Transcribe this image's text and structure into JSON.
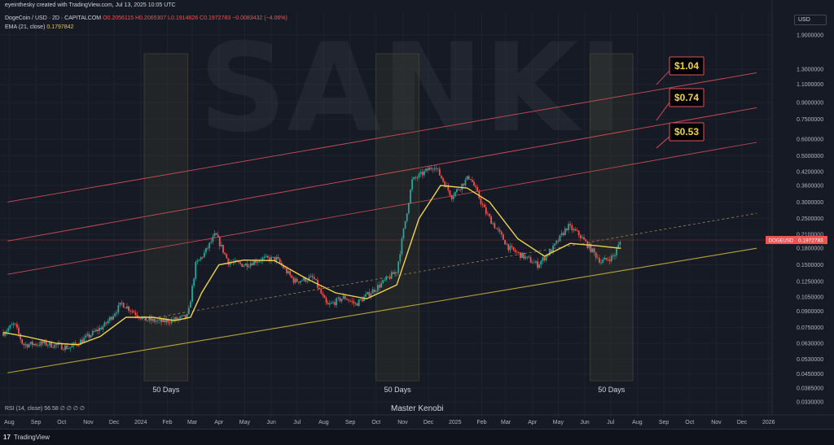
{
  "header": {
    "credit": "eyeinthesky created with TradingView.com, Jul 13, 2025 10:05 UTC",
    "symbol": "DogeCoin / USD · 2D · CAPITALCOM",
    "ohlc": "O0.2056115 H0.2065307 L0.1914826 C0.1972783 −0.0083432 (−4.06%)",
    "ema_label": "EMA (21, close)",
    "ema_value": "0.1797842"
  },
  "currency_button": "USD",
  "watermark": "SANKI",
  "watermark_subtitle": "Master Kenobi",
  "rsi": {
    "label": "RSI (14, close)",
    "value": "56.58",
    "placeholders": "∅ ∅ ∅ ∅"
  },
  "footer": {
    "logo": "17",
    "brand": "TradingView"
  },
  "colors": {
    "background": "#161a25",
    "up": "#26a69a",
    "down": "#ef5350",
    "ema": "#f0d34a",
    "support": "#c9b23a",
    "resistance": "#e0535b",
    "target_box": "#f4d03f"
  },
  "chart_data": {
    "type": "candlestick",
    "price_scale": "log",
    "ylim": [
      0.033,
      1.95
    ],
    "x_range": [
      "2023-07-25",
      "2026-01-05"
    ],
    "y_ticks": [
      "1.9000000",
      "1.3000000",
      "1.1000000",
      "0.9000000",
      "0.7500000",
      "0.6000000",
      "0.5000000",
      "0.4200000",
      "0.3600000",
      "0.3000000",
      "0.2500000",
      "0.2100000",
      "0.1800000",
      "0.1500000",
      "0.1250000",
      "0.1050000",
      "0.0900000",
      "0.0750000",
      "0.0630000",
      "0.0530000",
      "0.0450000",
      "0.0385000",
      "0.0330000"
    ],
    "x_ticks": [
      {
        "label": "Aug",
        "date": "2023-08-01"
      },
      {
        "label": "Sep",
        "date": "2023-09-01"
      },
      {
        "label": "Oct",
        "date": "2023-10-01"
      },
      {
        "label": "Nov",
        "date": "2023-11-01"
      },
      {
        "label": "Dec",
        "date": "2023-12-01"
      },
      {
        "label": "2024",
        "date": "2024-01-01"
      },
      {
        "label": "Feb",
        "date": "2024-02-01"
      },
      {
        "label": "Mar",
        "date": "2024-03-01"
      },
      {
        "label": "Apr",
        "date": "2024-04-01"
      },
      {
        "label": "May",
        "date": "2024-05-01"
      },
      {
        "label": "Jun",
        "date": "2024-06-01"
      },
      {
        "label": "Jul",
        "date": "2024-07-01"
      },
      {
        "label": "Aug",
        "date": "2024-08-01"
      },
      {
        "label": "Sep",
        "date": "2024-09-01"
      },
      {
        "label": "Oct",
        "date": "2024-10-01"
      },
      {
        "label": "Nov",
        "date": "2024-11-01"
      },
      {
        "label": "Dec",
        "date": "2024-12-01"
      },
      {
        "label": "2025",
        "date": "2025-01-01"
      },
      {
        "label": "Feb",
        "date": "2025-02-01"
      },
      {
        "label": "Mar",
        "date": "2025-03-01"
      },
      {
        "label": "Apr",
        "date": "2025-04-01"
      },
      {
        "label": "May",
        "date": "2025-05-01"
      },
      {
        "label": "Jun",
        "date": "2025-06-01"
      },
      {
        "label": "Jul",
        "date": "2025-07-01"
      },
      {
        "label": "Aug",
        "date": "2025-08-01"
      },
      {
        "label": "Sep",
        "date": "2025-09-01"
      },
      {
        "label": "Oct",
        "date": "2025-10-01"
      },
      {
        "label": "Nov",
        "date": "2025-11-01"
      },
      {
        "label": "Dec",
        "date": "2025-12-01"
      },
      {
        "label": "2026",
        "date": "2026-01-01"
      }
    ],
    "price_path": [
      [
        "2023-07-25",
        0.071
      ],
      [
        "2023-08-07",
        0.078
      ],
      [
        "2023-08-17",
        0.062
      ],
      [
        "2023-09-10",
        0.063
      ],
      [
        "2023-10-10",
        0.06
      ],
      [
        "2023-11-01",
        0.068
      ],
      [
        "2023-11-20",
        0.077
      ],
      [
        "2023-12-10",
        0.098
      ],
      [
        "2024-01-05",
        0.082
      ],
      [
        "2024-01-25",
        0.08
      ],
      [
        "2024-02-12",
        0.082
      ],
      [
        "2024-02-25",
        0.085
      ],
      [
        "2024-03-05",
        0.15
      ],
      [
        "2024-03-15",
        0.17
      ],
      [
        "2024-03-28",
        0.21
      ],
      [
        "2024-04-12",
        0.155
      ],
      [
        "2024-05-01",
        0.15
      ],
      [
        "2024-05-20",
        0.16
      ],
      [
        "2024-06-07",
        0.16
      ],
      [
        "2024-06-28",
        0.125
      ],
      [
        "2024-07-20",
        0.13
      ],
      [
        "2024-08-05",
        0.095
      ],
      [
        "2024-08-25",
        0.105
      ],
      [
        "2024-09-07",
        0.097
      ],
      [
        "2024-09-30",
        0.115
      ],
      [
        "2024-10-25",
        0.14
      ],
      [
        "2024-11-12",
        0.38
      ],
      [
        "2024-12-08",
        0.45
      ],
      [
        "2024-12-28",
        0.32
      ],
      [
        "2025-01-18",
        0.4
      ],
      [
        "2025-02-05",
        0.27
      ],
      [
        "2025-03-05",
        0.18
      ],
      [
        "2025-04-07",
        0.15
      ],
      [
        "2025-04-25",
        0.18
      ],
      [
        "2025-05-12",
        0.23
      ],
      [
        "2025-05-25",
        0.21
      ],
      [
        "2025-06-20",
        0.155
      ],
      [
        "2025-07-05",
        0.165
      ],
      [
        "2025-07-13",
        0.1972783
      ]
    ],
    "series": [
      {
        "name": "EMA (21, close)",
        "values": [
          [
            "2023-07-25",
            0.071
          ],
          [
            "2023-08-20",
            0.068
          ],
          [
            "2023-09-25",
            0.063
          ],
          [
            "2023-10-20",
            0.062
          ],
          [
            "2023-11-15",
            0.068
          ],
          [
            "2023-12-15",
            0.084
          ],
          [
            "2024-01-15",
            0.084
          ],
          [
            "2024-02-10",
            0.081
          ],
          [
            "2024-02-28",
            0.084
          ],
          [
            "2024-03-12",
            0.11
          ],
          [
            "2024-04-01",
            0.15
          ],
          [
            "2024-04-30",
            0.158
          ],
          [
            "2024-06-05",
            0.157
          ],
          [
            "2024-07-10",
            0.13
          ],
          [
            "2024-08-15",
            0.11
          ],
          [
            "2024-09-20",
            0.103
          ],
          [
            "2024-10-25",
            0.12
          ],
          [
            "2024-11-20",
            0.25
          ],
          [
            "2024-12-15",
            0.36
          ],
          [
            "2025-01-15",
            0.35
          ],
          [
            "2025-02-10",
            0.3
          ],
          [
            "2025-03-15",
            0.2
          ],
          [
            "2025-04-15",
            0.165
          ],
          [
            "2025-05-15",
            0.19
          ],
          [
            "2025-06-15",
            0.185
          ],
          [
            "2025-07-13",
            0.1797842
          ]
        ]
      }
    ],
    "trendlines": [
      {
        "name": "support",
        "from": [
          "2023-07-30",
          0.0455
        ],
        "to": [
          "2025-12-18",
          0.18
        ]
      },
      {
        "name": "resistance_1",
        "from": [
          "2023-07-30",
          0.3
        ],
        "to": [
          "2025-12-18",
          1.25
        ]
      },
      {
        "name": "resistance_2",
        "from": [
          "2023-07-30",
          0.195
        ],
        "to": [
          "2025-12-18",
          0.85
        ]
      },
      {
        "name": "resistance_3",
        "from": [
          "2023-07-30",
          0.135
        ],
        "to": [
          "2025-12-18",
          0.58
        ]
      },
      {
        "name": "midline",
        "from": [
          "2024-01-05",
          0.082
        ],
        "to": [
          "2025-12-18",
          0.265
        ]
      }
    ],
    "horizontal_line": 0.1972783,
    "shaded_ranges": [
      {
        "from": "2024-01-05",
        "to": "2024-02-25",
        "label": "50 Days"
      },
      {
        "from": "2024-10-01",
        "to": "2024-11-20",
        "label": "50 Days"
      },
      {
        "from": "2025-06-07",
        "to": "2025-07-27",
        "label": "50 Days"
      }
    ],
    "targets": [
      "$1.04",
      "$0.74",
      "$0.53"
    ],
    "last_price_label": {
      "symbol": "DOGEUSD",
      "value": "0.1972783"
    }
  }
}
